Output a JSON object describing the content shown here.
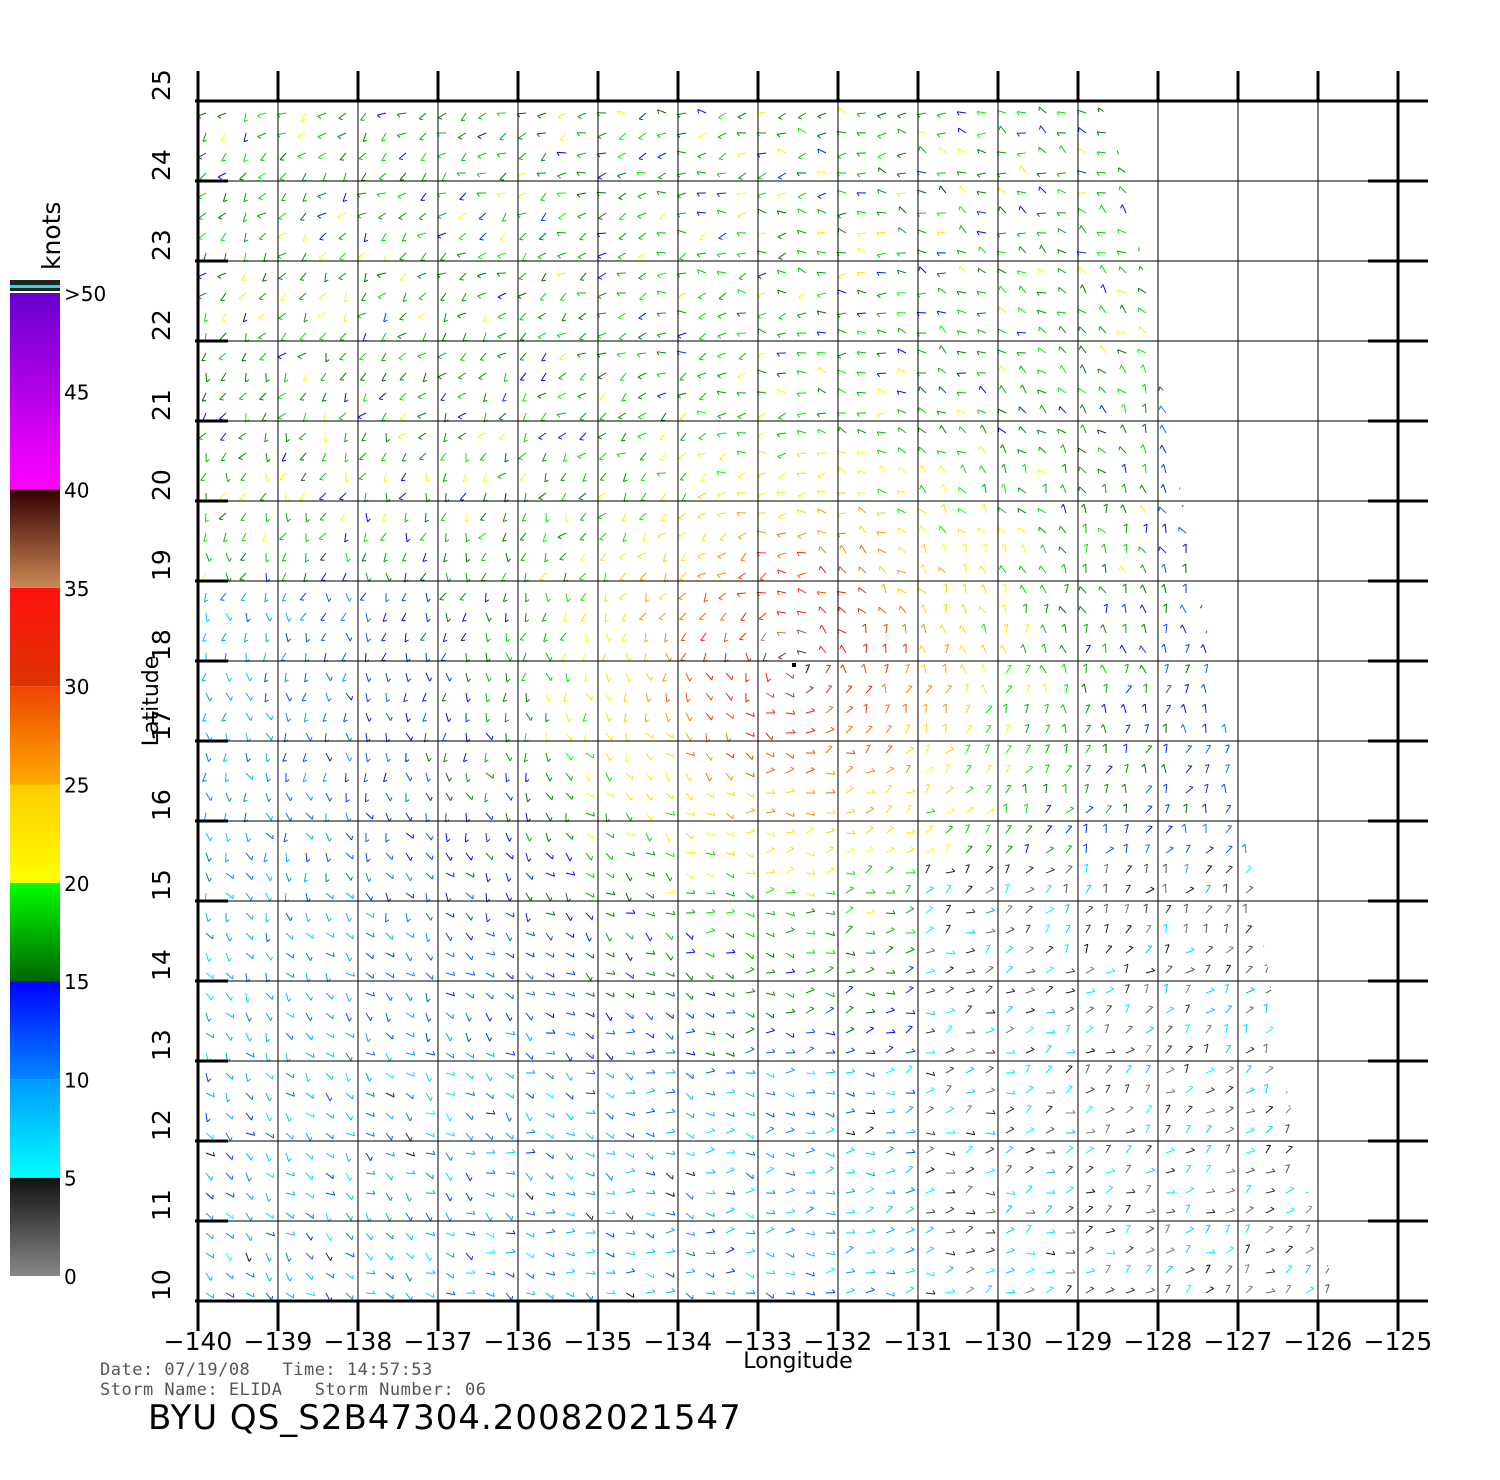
{
  "map": {
    "x_axis_title": "Longitude",
    "y_axis_title": "Latitude",
    "lon_ticks": [
      "-140",
      "-139",
      "-138",
      "-137",
      "-136",
      "-135",
      "-134",
      "-133",
      "-132",
      "-131",
      "-130",
      "-129",
      "-128",
      "-127",
      "-126",
      "-125"
    ],
    "lat_ticks": [
      "10",
      "11",
      "12",
      "13",
      "14",
      "15",
      "16",
      "17",
      "18",
      "19",
      "20",
      "21",
      "22",
      "23",
      "24",
      "25"
    ],
    "lon_range": [
      -140,
      -125
    ],
    "lat_range": [
      10,
      25
    ],
    "storm_center": {
      "lon": -132.55,
      "lat": 17.95
    },
    "gridlines": true
  },
  "colorbar": {
    "unit": "knots",
    "labels": [
      "0",
      "5",
      "10",
      "15",
      "20",
      "25",
      "30",
      "35",
      "40",
      "45",
      ">50"
    ],
    "bands": [
      {
        "from": 0,
        "to": 5,
        "color_low": "#888888",
        "color_high": "#111111"
      },
      {
        "from": 5,
        "to": 10,
        "color_low": "#00ffff",
        "color_high": "#0099ff"
      },
      {
        "from": 10,
        "to": 15,
        "color_low": "#0088ff",
        "color_high": "#0000ff"
      },
      {
        "from": 15,
        "to": 20,
        "color_low": "#006600",
        "color_high": "#00ff00"
      },
      {
        "from": 20,
        "to": 25,
        "color_low": "#ffff00",
        "color_high": "#ffcc00"
      },
      {
        "from": 25,
        "to": 30,
        "color_low": "#ffaa00",
        "color_high": "#ee4400"
      },
      {
        "from": 30,
        "to": 35,
        "color_low": "#dd3300",
        "color_high": "#ff1111"
      },
      {
        "from": 35,
        "to": 40,
        "color_low": "#cc8855",
        "color_high": "#330000"
      },
      {
        "from": 40,
        "to": 50,
        "color_low": "#ff00ff",
        "color_high": "#6600cc"
      }
    ]
  },
  "metadata": {
    "line1": "Date: 07/19/08   Time: 14:57:53",
    "line2": "Storm Name: ELIDA   Storm Number: 06",
    "product_id": "BYU  QS_S2B47304.20082021547"
  }
}
